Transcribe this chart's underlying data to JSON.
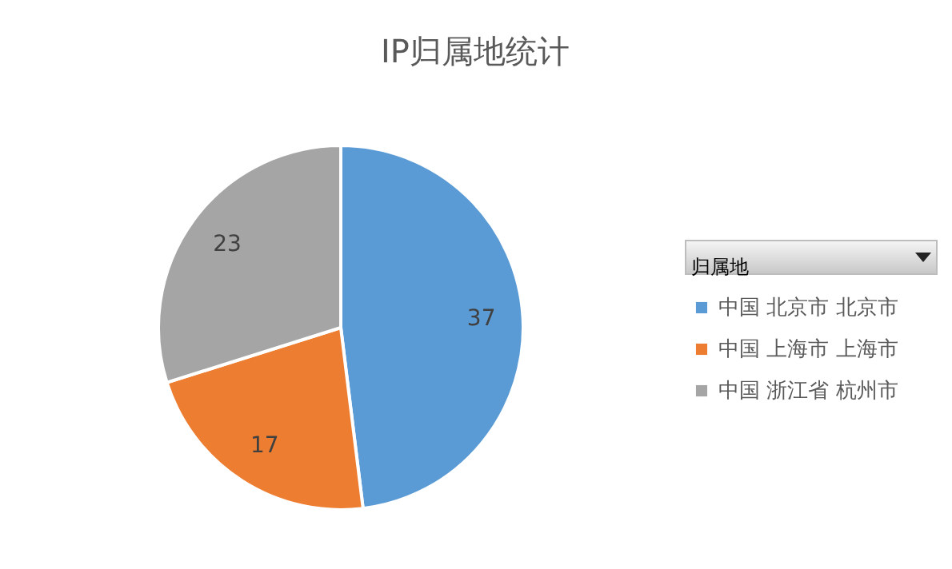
{
  "chart_data": {
    "type": "pie",
    "title": "IP归属地统计",
    "legend_title": "归属地",
    "legend": "right",
    "categories": [
      "中国 北京市 北京市",
      "中国 上海市 上海市",
      "中国 浙江省 杭州市"
    ],
    "values": [
      37,
      17,
      23
    ],
    "colors": [
      "#5b9bd5",
      "#ed7d31",
      "#a5a5a5"
    ],
    "data_labels": true
  }
}
